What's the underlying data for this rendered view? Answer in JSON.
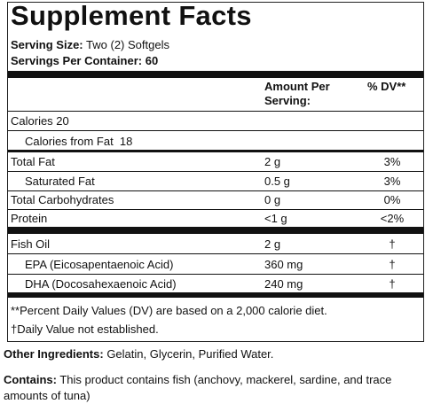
{
  "title": "Supplement Facts",
  "serving_size": {
    "label": "Serving Size:",
    "value": "Two (2) Softgels"
  },
  "servings_per_container": {
    "label": "Servings Per Container:",
    "value": "60"
  },
  "table": {
    "header": {
      "amount": "Amount Per Serving:",
      "dv": "% DV**"
    },
    "rows": [
      [
        "Calories 20"
      ],
      [
        "Calories from Fat  18"
      ],
      [
        "Total Fat",
        "2 g",
        "3%"
      ],
      [
        "Saturated Fat",
        "0.5 g",
        "3%"
      ],
      [
        "Total Carbohydrates",
        "0 g",
        "0%"
      ],
      [
        "Protein",
        "<1 g",
        "<2%"
      ],
      [
        "Fish Oil",
        "2 g",
        "†"
      ],
      [
        "EPA (Eicosapentaenoic Acid)",
        "360 mg",
        "†"
      ],
      [
        "DHA (Docosahexaenoic Acid)",
        "240 mg",
        "†"
      ]
    ]
  },
  "footnotes": [
    "**Percent Daily Values (DV) are based on a 2,000 calorie diet.",
    "†Daily Value not established."
  ],
  "other_ingredients": {
    "label": "Other Ingredients:",
    "value": "Gelatin, Glycerin, Purified Water."
  },
  "contains": {
    "label": "Contains:",
    "value": "This product contains fish (anchovy, mackerel, sardine, and trace amounts of tuna)"
  }
}
